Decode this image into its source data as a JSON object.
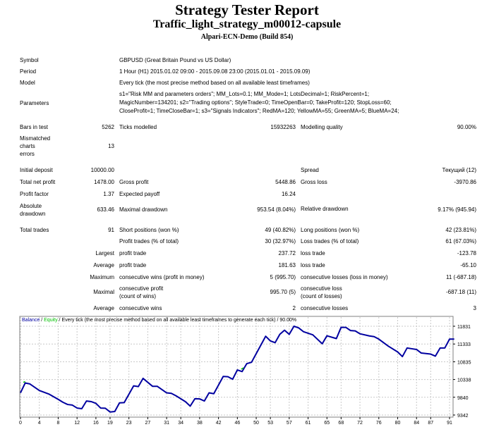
{
  "header": {
    "title": "Strategy Tester Report",
    "expert": "Traffic_light_strategy_m00012-capsule",
    "server": "Alpari-ECN-Demo (Build 854)"
  },
  "info": {
    "symbol_label": "Symbol",
    "symbol": "GBPUSD (Great Britain Pound vs US Dollar)",
    "period_label": "Period",
    "period": "1 Hour (H1) 2015.01.02 09:00 - 2015.09.08 23:00 (2015.01.01 - 2015.09.09)",
    "model_label": "Model",
    "model": "Every tick (the most precise method based on all available least timeframes)",
    "parameters_label": "Parameters",
    "parameters": [
      "s1=\"Risk MM and parameters orders\"; MM_Lots=0.1; MM_Mode=1; LotsDecimal=1; RiskPercent=1;",
      "MagicNumber=134201; s2=\"Trading options\"; StyleTrade=0; TimeOpenBar=0; TakeProfit=120; StopLoss=60;",
      "CloseProfit=1; TimeCloseBar=1; s3=\"Signals Indicators\"; RedMA=120; YellowMA=55; GreenMA=5; BlueMA=24;"
    ],
    "bars_label": "Bars in test",
    "bars": "5262",
    "ticks_label": "Ticks modelled",
    "ticks": "15932263",
    "quality_label": "Modelling quality",
    "quality": "90.00%",
    "mismatched_label": [
      "Mismatched",
      "charts",
      "errors"
    ],
    "mismatched": "13"
  },
  "stats": {
    "initial_deposit_label": "Initial deposit",
    "initial_deposit": "10000.00",
    "spread_label": "Spread",
    "spread": "Текущий (12)",
    "net_profit_label": "Total net profit",
    "net_profit": "1478.00",
    "gross_profit_label": "Gross profit",
    "gross_profit": "5448.86",
    "gross_loss_label": "Gross loss",
    "gross_loss": "-3970.86",
    "profit_factor_label": "Profit factor",
    "profit_factor": "1.37",
    "expected_payoff_label": "Expected payoff",
    "expected_payoff": "16.24",
    "abs_dd_label": [
      "Absolute",
      "drawdown"
    ],
    "abs_dd": "633.46",
    "max_dd_label": "Maximal drawdown",
    "max_dd": "953.54 (8.04%)",
    "rel_dd_label": "Relative drawdown",
    "rel_dd": "9.17% (945.94)",
    "total_trades_label": "Total trades",
    "total_trades": "91",
    "short_label": "Short positions (won %)",
    "short": "49 (40.82%)",
    "long_label": "Long positions (won %)",
    "long": "42 (23.81%)",
    "profit_trades_label": "Profit trades (% of total)",
    "profit_trades": "30 (32.97%)",
    "loss_trades_label": "Loss trades (% of total)",
    "loss_trades": "61 (67.03%)",
    "largest": "Largest",
    "largest_profit_label": "profit trade",
    "largest_profit": "237.72",
    "largest_loss_label": "loss trade",
    "largest_loss": "-123.78",
    "average": "Average",
    "avg_profit_label": "profit trade",
    "avg_profit": "181.63",
    "avg_loss_label": "loss trade",
    "avg_loss": "-65.10",
    "maximum": "Maximum",
    "max_cons_wins_label": "consecutive wins (profit in money)",
    "max_cons_wins": "5 (995.70)",
    "max_cons_losses_label": "consecutive losses (loss in money)",
    "max_cons_losses": "11 (-687.18)",
    "maximal": "Maximal",
    "maximal_profit_label": [
      "consecutive profit",
      "(count of wins)"
    ],
    "maximal_profit": "995.70 (5)",
    "maximal_loss_label": [
      "consecutive loss",
      "(count of losses)"
    ],
    "maximal_loss": "-687.18 (11)",
    "average2": "Average",
    "avg_cons_wins_label": "consecutive wins",
    "avg_cons_wins": "2",
    "avg_cons_losses_label": "consecutive losses",
    "avg_cons_losses": "3"
  },
  "chart_data": {
    "type": "line",
    "legend": {
      "balance": "Balance",
      "sep1": " / ",
      "equity": "Equity",
      "rest": " / Every tick (the most precise method based on all available least timeframes to generate each tick) / 90.00%"
    },
    "colors": {
      "balance": "#0000a0",
      "equity": "#00c000"
    },
    "xticks": [
      0,
      4,
      8,
      12,
      16,
      19,
      23,
      27,
      31,
      34,
      38,
      42,
      46,
      50,
      53,
      57,
      61,
      65,
      68,
      72,
      76,
      80,
      84,
      87,
      91
    ],
    "yticks": [
      9342,
      9840,
      10338,
      10835,
      11333,
      11831
    ],
    "xlim": [
      0,
      91
    ],
    "ylim": [
      9342,
      11831
    ],
    "grid": true,
    "series": [
      {
        "name": "Balance",
        "points": [
          [
            0,
            9964
          ],
          [
            1,
            10240
          ],
          [
            2,
            10213
          ],
          [
            4,
            10030
          ],
          [
            6,
            9932
          ],
          [
            8,
            9781
          ],
          [
            9,
            9700
          ],
          [
            10,
            9637
          ],
          [
            11,
            9620
          ],
          [
            12,
            9538
          ],
          [
            13,
            9519
          ],
          [
            14,
            9735
          ],
          [
            15,
            9718
          ],
          [
            16,
            9670
          ],
          [
            17,
            9538
          ],
          [
            18,
            9532
          ],
          [
            19,
            9427
          ],
          [
            20,
            9440
          ],
          [
            21,
            9683
          ],
          [
            22,
            9690
          ],
          [
            24,
            10160
          ],
          [
            25,
            10140
          ],
          [
            26,
            10370
          ],
          [
            28,
            10148
          ],
          [
            29,
            10148
          ],
          [
            31,
            9964
          ],
          [
            32,
            9950
          ],
          [
            33,
            9880
          ],
          [
            35,
            9715
          ],
          [
            36,
            9591
          ],
          [
            37,
            9800
          ],
          [
            38,
            9795
          ],
          [
            39,
            9735
          ],
          [
            40,
            9964
          ],
          [
            41,
            9940
          ],
          [
            43,
            10423
          ],
          [
            44,
            10416
          ],
          [
            45,
            10345
          ],
          [
            46,
            10606
          ],
          [
            47,
            10560
          ],
          [
            48,
            10783
          ],
          [
            49,
            10820
          ],
          [
            52,
            11550
          ],
          [
            53,
            11420
          ],
          [
            54,
            11370
          ],
          [
            55,
            11603
          ],
          [
            56,
            11720
          ],
          [
            57,
            11603
          ],
          [
            58,
            11831
          ],
          [
            59,
            11785
          ],
          [
            60,
            11680
          ],
          [
            62,
            11590
          ],
          [
            64,
            11340
          ],
          [
            65,
            11563
          ],
          [
            67,
            11485
          ],
          [
            68,
            11800
          ],
          [
            69,
            11800
          ],
          [
            70,
            11710
          ],
          [
            71,
            11700
          ],
          [
            72,
            11620
          ],
          [
            74,
            11560
          ],
          [
            75,
            11540
          ],
          [
            76,
            11470
          ],
          [
            78,
            11274
          ],
          [
            80,
            11110
          ],
          [
            81,
            10980
          ],
          [
            82,
            11222
          ],
          [
            83,
            11200
          ],
          [
            84,
            11180
          ],
          [
            85,
            11080
          ],
          [
            87,
            11050
          ],
          [
            88,
            10993
          ],
          [
            89,
            11222
          ],
          [
            90,
            11222
          ],
          [
            91,
            11471
          ],
          [
            92,
            11471
          ]
        ]
      }
    ]
  }
}
